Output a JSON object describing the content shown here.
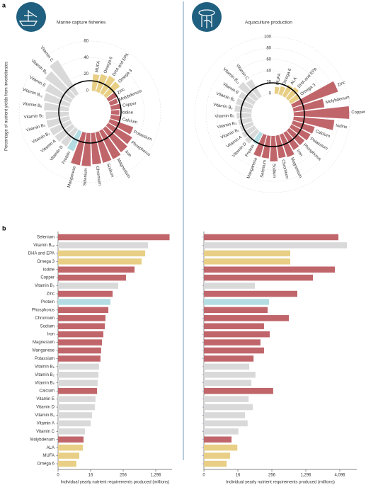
{
  "panel_labels": [
    "a",
    "b"
  ],
  "chart_data": [
    {
      "type": "radial_bar",
      "title": "Marine capture fisheries",
      "ylabel": "Percentage of nutrient yields from invertebrates",
      "categories": [
        "MUFA",
        "Omega 6",
        "DHA and EPA",
        "Omega 3",
        "Zinc",
        "Molybdenum",
        "Copper",
        "Iodine",
        "Calcium",
        "Potassium",
        "Phosphorus",
        "Iron",
        "Magnesium",
        "Sodium",
        "Chromium",
        "Selenium",
        "Manganese",
        "Protein",
        "Vitamin D",
        "Vitamin A",
        "Vitamin B₁",
        "Vitamin B₃",
        "Vitamin B₂",
        "Vitamin B₆",
        "Vitamin B₁₂",
        "Vitamin E",
        "Vitamin B₉",
        "Vitamin C"
      ],
      "values": [
        20,
        22,
        24,
        22,
        12,
        10,
        12,
        10,
        12,
        30,
        34,
        36,
        38,
        38,
        38,
        40,
        40,
        26,
        25,
        26,
        27,
        28,
        28,
        30,
        32,
        34,
        42,
        48
      ],
      "colors": [
        "#e8cf85",
        "#e8cf85",
        "#e8cf85",
        "#e8cf85",
        "#c0666b",
        "#c0666b",
        "#c0666b",
        "#c0666b",
        "#c0666b",
        "#c0666b",
        "#c0666b",
        "#c0666b",
        "#c0666b",
        "#c0666b",
        "#c0666b",
        "#c0666b",
        "#c0666b",
        "#b3dde2",
        "#d9d9d9",
        "#d9d9d9",
        "#d9d9d9",
        "#d9d9d9",
        "#d9d9d9",
        "#d9d9d9",
        "#d9d9d9",
        "#d9d9d9",
        "#d9d9d9",
        "#d9d9d9"
      ],
      "ylim": [
        0,
        60
      ],
      "yticks": [
        0,
        20,
        40,
        60
      ]
    },
    {
      "type": "radial_bar",
      "title": "Aquaculture production",
      "categories": [
        "MUFA",
        "Omega 6",
        "ALA",
        "DHA and EPA",
        "Omega 3",
        "Zinc",
        "Molybdenum",
        "Copper",
        "Iodine",
        "Calcium",
        "Potassium",
        "Phosphorus",
        "Iron",
        "Magnesium",
        "Chromium",
        "Sodium",
        "Selenium",
        "Manganese",
        "Protein",
        "Vitamin D",
        "Vitamin A",
        "Vitamin B₁",
        "Vitamin B₃",
        "Vitamin B₂",
        "Vitamin B₆",
        "Vitamin B₉",
        "Vitamin E",
        "Vitamin B₁₂",
        "Vitamin C"
      ],
      "values": [
        12,
        15,
        22,
        25,
        20,
        85,
        55,
        98,
        72,
        40,
        38,
        35,
        35,
        42,
        40,
        45,
        40,
        40,
        22,
        28,
        26,
        24,
        24,
        26,
        30,
        30,
        30,
        40,
        35
      ],
      "colors": [
        "#e8cf85",
        "#e8cf85",
        "#e8cf85",
        "#e8cf85",
        "#e8cf85",
        "#c0666b",
        "#c0666b",
        "#c0666b",
        "#c0666b",
        "#c0666b",
        "#c0666b",
        "#c0666b",
        "#c0666b",
        "#c0666b",
        "#c0666b",
        "#c0666b",
        "#c0666b",
        "#c0666b",
        "#b3dde2",
        "#d9d9d9",
        "#d9d9d9",
        "#d9d9d9",
        "#d9d9d9",
        "#d9d9d9",
        "#d9d9d9",
        "#d9d9d9",
        "#d9d9d9",
        "#d9d9d9",
        "#d9d9d9"
      ],
      "ylim": [
        0,
        100
      ],
      "yticks": [
        0,
        20,
        40,
        60,
        80,
        100
      ]
    },
    {
      "type": "bar",
      "orientation": "horizontal",
      "xscale": "fourth-root",
      "xlabel": "Individual yearly nutrient requirements produced (millions)",
      "categories": [
        "Selenium",
        "Vitamin B₁₂",
        "DHA and EPA",
        "Omega 3",
        "Iodine",
        "Copper",
        "Vitamin B₃",
        "Zinc",
        "Protein",
        "Phosphorus",
        "Chromium",
        "Sodium",
        "Iron",
        "Magnesium",
        "Manganese",
        "Potassium",
        "Vitamin B₆",
        "Vitamin B₂",
        "Vitamin B₉",
        "Calcium",
        "Vitamin E",
        "Vitamin D",
        "Vitamin B₁",
        "Vitamin A",
        "Vitamin C",
        "Molybdenum",
        "ALA",
        "MUFA",
        "Omega 6"
      ],
      "values": [
        2200,
        929,
        819,
        693,
        487,
        303,
        187,
        126,
        107,
        91,
        72,
        68,
        60,
        53,
        49,
        46,
        40,
        38,
        35,
        33,
        28,
        26,
        19,
        16,
        7.4,
        6,
        5.4,
        2.9,
        1.6
      ],
      "colors": [
        "#c0666b",
        "#d9d9d9",
        "#e8cf85",
        "#e8cf85",
        "#c0666b",
        "#c0666b",
        "#d9d9d9",
        "#c0666b",
        "#b3dde2",
        "#c0666b",
        "#c0666b",
        "#c0666b",
        "#c0666b",
        "#c0666b",
        "#c0666b",
        "#c0666b",
        "#d9d9d9",
        "#d9d9d9",
        "#d9d9d9",
        "#c0666b",
        "#d9d9d9",
        "#d9d9d9",
        "#d9d9d9",
        "#d9d9d9",
        "#d9d9d9",
        "#c0666b",
        "#e8cf85",
        "#e8cf85",
        "#e8cf85"
      ],
      "xlim": [
        0,
        2401
      ],
      "xticks": [
        0,
        16,
        256,
        {
          "value": 1296,
          "label": "1,296"
        }
      ]
    },
    {
      "type": "bar",
      "orientation": "horizontal",
      "xscale": "fourth-root",
      "xlabel": "Individual yearly nutrient requirements produced (millions)",
      "values": [
        3930,
        5020,
        667,
        667,
        3530,
        1697,
        81,
        915,
        216,
        198,
        625,
        157,
        226,
        123,
        157,
        73,
        51,
        85,
        61,
        277,
        48,
        69,
        34,
        44,
        17,
        7,
        15,
        5.6,
        3.2
      ],
      "colors": [
        "#c0666b",
        "#d9d9d9",
        "#e8cf85",
        "#e8cf85",
        "#c0666b",
        "#c0666b",
        "#d9d9d9",
        "#c0666b",
        "#b3dde2",
        "#c0666b",
        "#c0666b",
        "#c0666b",
        "#c0666b",
        "#c0666b",
        "#c0666b",
        "#c0666b",
        "#d9d9d9",
        "#d9d9d9",
        "#d9d9d9",
        "#c0666b",
        "#d9d9d9",
        "#d9d9d9",
        "#d9d9d9",
        "#d9d9d9",
        "#d9d9d9",
        "#c0666b",
        "#e8cf85",
        "#e8cf85",
        "#e8cf85"
      ],
      "xlim": [
        0,
        6561
      ],
      "xticks": [
        0,
        16,
        256,
        {
          "value": 1296,
          "label": "1,296"
        },
        {
          "value": 4096,
          "label": "4,096"
        }
      ]
    }
  ]
}
